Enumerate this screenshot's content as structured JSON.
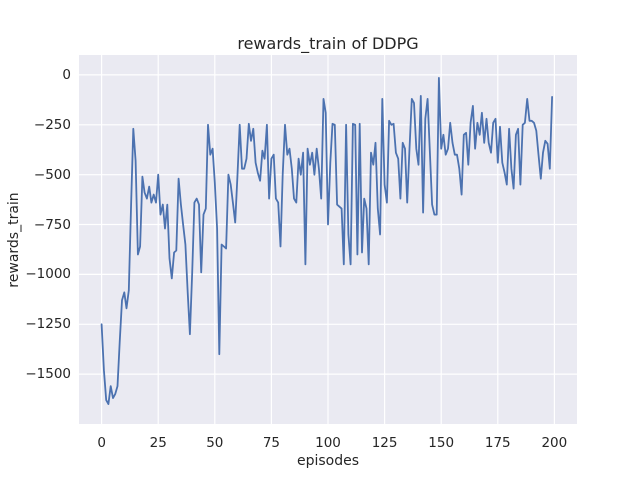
{
  "figure": {
    "title": "rewards_train of DDPG",
    "xlabel": "episodes",
    "ylabel": "rewards_train"
  },
  "chart_data": {
    "type": "line",
    "title": "rewards_train of DDPG",
    "xlabel": "episodes",
    "ylabel": "rewards_train",
    "style": "seaborn-darkgrid",
    "background_color": "#eaeaf2",
    "grid_color": "#ffffff",
    "text_color": "#262626",
    "grid": true,
    "legend": false,
    "xlim": [
      -10,
      210
    ],
    "ylim": [
      -1750,
      100
    ],
    "xticks": [
      0,
      25,
      50,
      75,
      100,
      125,
      150,
      175,
      200
    ],
    "xtick_labels": [
      "0",
      "25",
      "50",
      "75",
      "100",
      "125",
      "150",
      "175",
      "200"
    ],
    "yticks": [
      0,
      -250,
      -500,
      -750,
      -1000,
      -1250,
      -1500
    ],
    "ytick_labels": [
      "0",
      "−250",
      "−500",
      "−750",
      "−1000",
      "−1250",
      "−1500"
    ],
    "x_start": 0,
    "x_step": 1,
    "series": [
      {
        "name": "rewards_train",
        "color": "#4c72b0",
        "line_width": 1.8,
        "y": [
          -1250,
          -1480,
          -1630,
          -1650,
          -1560,
          -1620,
          -1600,
          -1560,
          -1340,
          -1130,
          -1090,
          -1170,
          -1080,
          -650,
          -270,
          -430,
          -900,
          -860,
          -510,
          -590,
          -620,
          -560,
          -640,
          -600,
          -640,
          -500,
          -700,
          -650,
          -770,
          -650,
          -920,
          -1020,
          -890,
          -880,
          -520,
          -650,
          -750,
          -850,
          -1090,
          -1300,
          -990,
          -640,
          -620,
          -650,
          -990,
          -700,
          -670,
          -250,
          -400,
          -370,
          -540,
          -770,
          -1400,
          -850,
          -860,
          -870,
          -500,
          -550,
          -640,
          -740,
          -500,
          -250,
          -470,
          -470,
          -420,
          -245,
          -330,
          -270,
          -440,
          -490,
          -530,
          -380,
          -420,
          -250,
          -620,
          -420,
          -400,
          -620,
          -640,
          -860,
          -500,
          -250,
          -400,
          -370,
          -470,
          -620,
          -640,
          -420,
          -500,
          -390,
          -950,
          -370,
          -450,
          -390,
          -500,
          -370,
          -470,
          -620,
          -120,
          -190,
          -750,
          -440,
          -245,
          -250,
          -650,
          -660,
          -670,
          -950,
          -250,
          -800,
          -950,
          -245,
          -250,
          -900,
          -245,
          -890,
          -620,
          -670,
          -950,
          -390,
          -450,
          -340,
          -670,
          -800,
          -120,
          -550,
          -640,
          -230,
          -250,
          -245,
          -390,
          -420,
          -620,
          -340,
          -370,
          -640,
          -370,
          -120,
          -140,
          -370,
          -450,
          -105,
          -690,
          -220,
          -120,
          -390,
          -650,
          -700,
          -700,
          -15,
          -370,
          -300,
          -400,
          -370,
          -240,
          -340,
          -400,
          -400,
          -470,
          -600,
          -300,
          -290,
          -450,
          -240,
          -155,
          -370,
          -240,
          -300,
          -190,
          -340,
          -220,
          -340,
          -390,
          -240,
          -220,
          -440,
          -260,
          -440,
          -490,
          -550,
          -270,
          -470,
          -570,
          -300,
          -270,
          -550,
          -250,
          -240,
          -120,
          -230,
          -230,
          -240,
          -280,
          -400,
          -520,
          -390,
          -330,
          -345,
          -470,
          -110
        ]
      }
    ]
  }
}
